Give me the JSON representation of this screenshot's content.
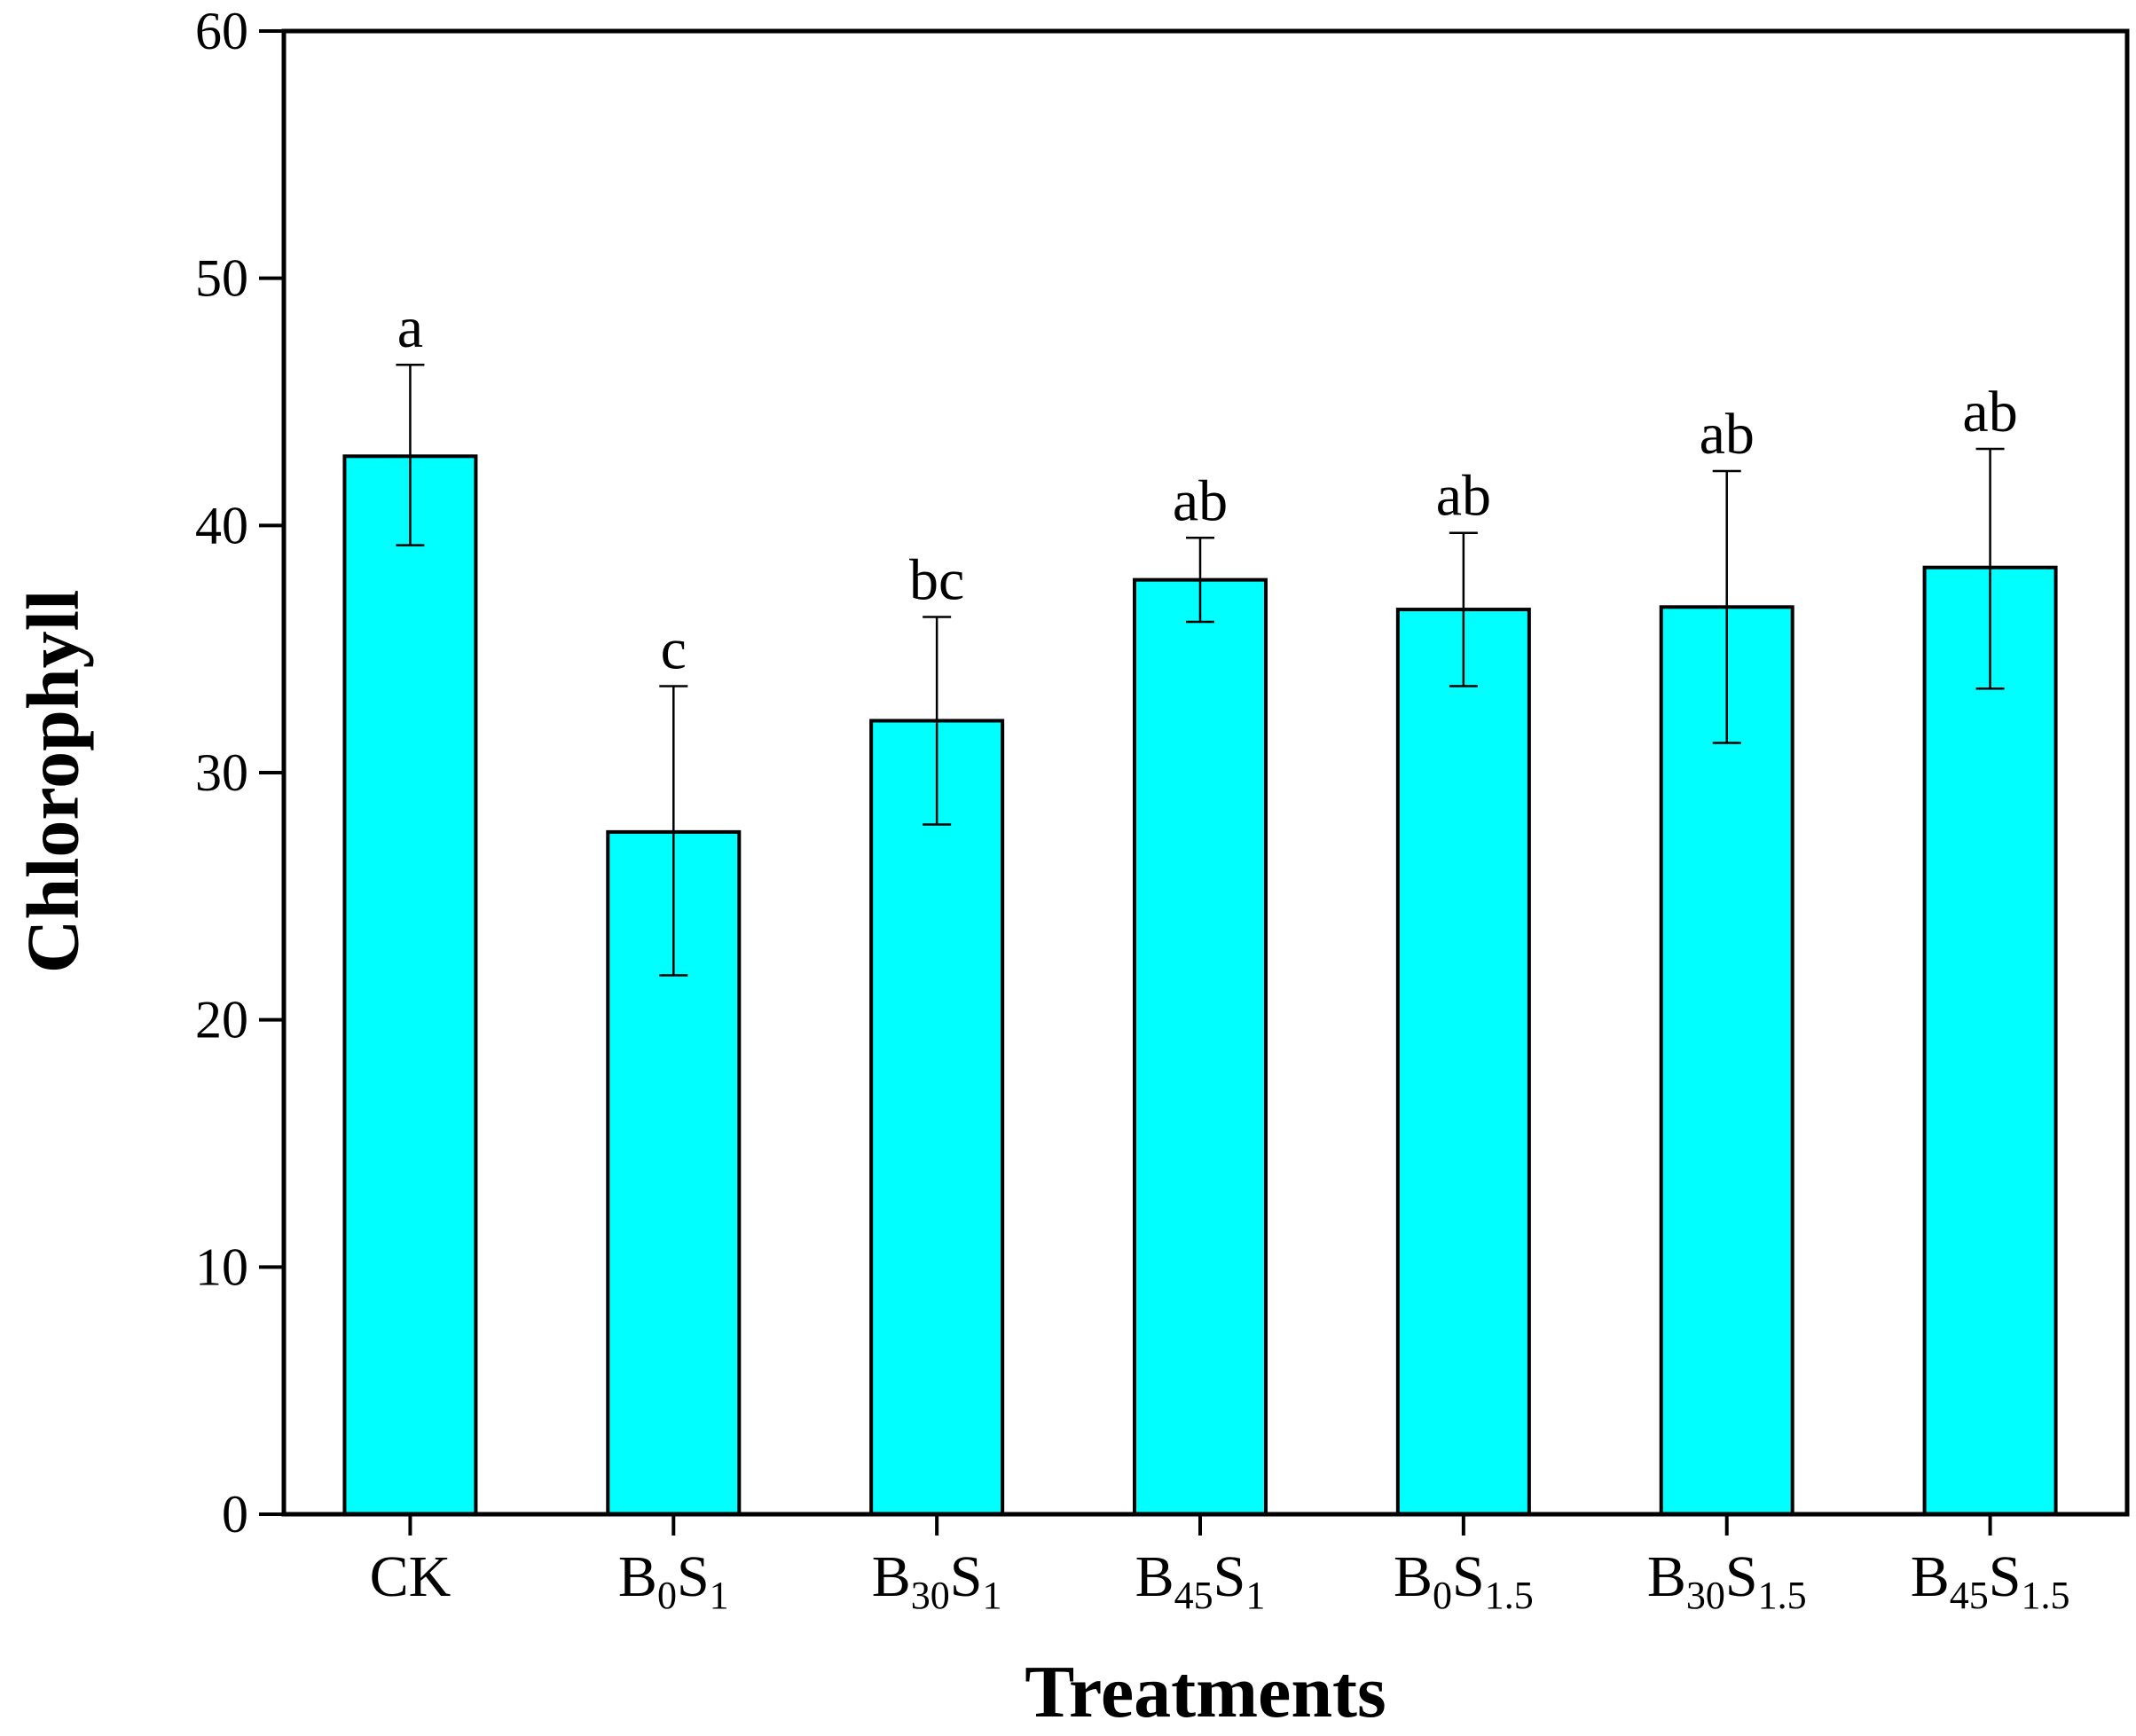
{
  "chart_data": {
    "type": "bar",
    "title": "",
    "xlabel": "Treatments",
    "ylabel": "Chlorophyll",
    "ylim": [
      0,
      60
    ],
    "yticks": [
      "0",
      "10",
      "20",
      "30",
      "40",
      "50",
      "60"
    ],
    "categories": [
      {
        "base": "CK",
        "parts": [
          {
            "t": "CK",
            "sub": false
          }
        ]
      },
      {
        "base": "B0S1",
        "parts": [
          {
            "t": "B",
            "sub": false
          },
          {
            "t": "0",
            "sub": true
          },
          {
            "t": "S",
            "sub": false
          },
          {
            "t": "1",
            "sub": true
          }
        ]
      },
      {
        "base": "B30S1",
        "parts": [
          {
            "t": "B",
            "sub": false
          },
          {
            "t": "30",
            "sub": true
          },
          {
            "t": "S",
            "sub": false
          },
          {
            "t": "1",
            "sub": true
          }
        ]
      },
      {
        "base": "B45S1",
        "parts": [
          {
            "t": "B",
            "sub": false
          },
          {
            "t": "45",
            "sub": true
          },
          {
            "t": "S",
            "sub": false
          },
          {
            "t": "1",
            "sub": true
          }
        ]
      },
      {
        "base": "B0S1.5",
        "parts": [
          {
            "t": "B",
            "sub": false
          },
          {
            "t": "0",
            "sub": true
          },
          {
            "t": "S",
            "sub": false
          },
          {
            "t": "1.5",
            "sub": true
          }
        ]
      },
      {
        "base": "B30S1.5",
        "parts": [
          {
            "t": "B",
            "sub": false
          },
          {
            "t": "30",
            "sub": true
          },
          {
            "t": "S",
            "sub": false
          },
          {
            "t": "1.5",
            "sub": true
          }
        ]
      },
      {
        "base": "B45S1.5",
        "parts": [
          {
            "t": "B",
            "sub": false
          },
          {
            "t": "45",
            "sub": true
          },
          {
            "t": "S",
            "sub": false
          },
          {
            "t": "1.5",
            "sub": true
          }
        ]
      }
    ],
    "values": [
      42.8,
      27.6,
      32.1,
      37.8,
      36.6,
      36.7,
      38.3
    ],
    "error_low": [
      39.2,
      21.8,
      27.9,
      36.1,
      33.5,
      31.2,
      33.4
    ],
    "error_high": [
      46.5,
      33.5,
      36.3,
      39.5,
      39.7,
      42.2,
      43.1
    ],
    "significance": [
      "a",
      "c",
      "bc",
      "ab",
      "ab",
      "ab",
      "ab"
    ],
    "bar_color": "#00FFFF",
    "grid": false,
    "legend": "none"
  }
}
